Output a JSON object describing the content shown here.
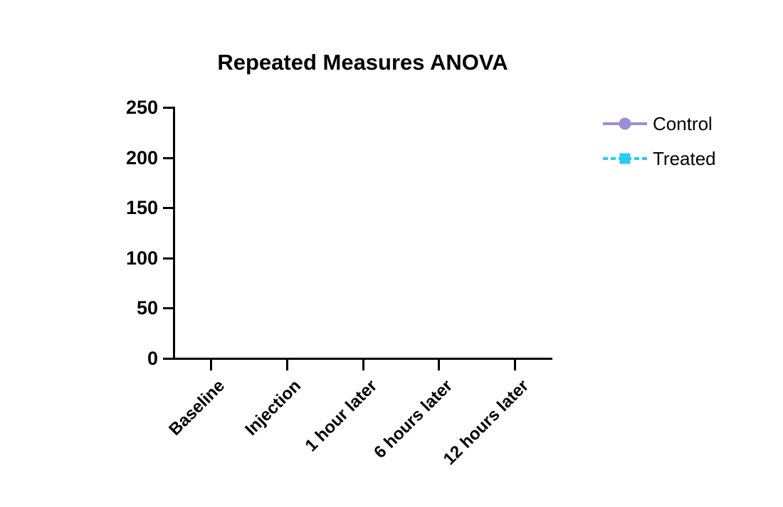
{
  "chart_data": {
    "type": "line",
    "title": "Repeated Measures ANOVA",
    "categories": [
      "Baseline",
      "Injection",
      "1 hour later",
      "6 hours later",
      "12 hours later"
    ],
    "series": [
      {
        "name": "Control",
        "color": "#9E8DD3",
        "marker": "circle",
        "line_style": "solid",
        "values": []
      },
      {
        "name": "Treated",
        "color": "#2BCAF2",
        "marker": "square",
        "line_style": "dashed",
        "values": []
      }
    ],
    "xlabel": "",
    "ylabel": "",
    "ylim": [
      0,
      250
    ],
    "y_ticks": [
      0,
      50,
      100,
      150,
      200,
      250
    ],
    "grid": false,
    "legend_position": "right"
  }
}
